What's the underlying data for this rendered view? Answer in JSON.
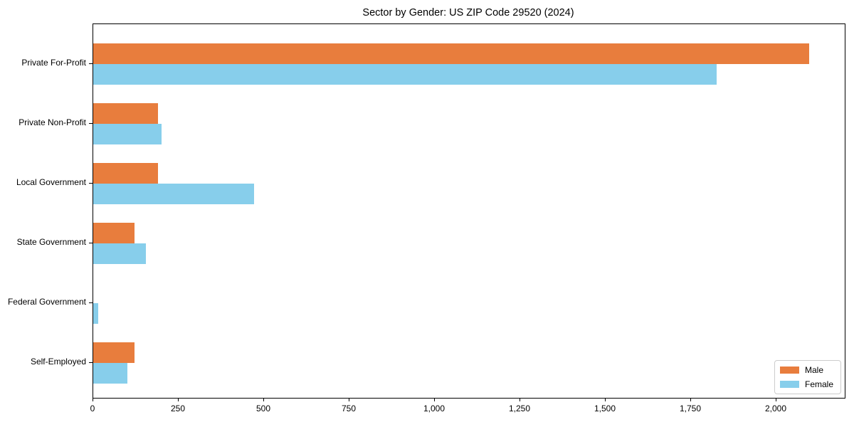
{
  "title": "Sector by Gender: US ZIP Code 29520 (2024)",
  "chart_data": {
    "type": "bar",
    "orientation": "horizontal",
    "title": "Sector by Gender: US ZIP Code 29520 (2024)",
    "xlabel": "",
    "ylabel": "",
    "categories": [
      "Private For-Profit",
      "Private Non-Profit",
      "Local Government",
      "State Government",
      "Federal Government",
      "Self-Employed"
    ],
    "series": [
      {
        "name": "Male",
        "color": "#e87d3d",
        "values": [
          2095,
          190,
          190,
          120,
          0,
          120
        ]
      },
      {
        "name": "Female",
        "color": "#87ceeb",
        "values": [
          1825,
          200,
          470,
          155,
          15,
          100
        ]
      }
    ],
    "xlim": [
      0,
      2200
    ],
    "x_tick_values": [
      0,
      250,
      500,
      750,
      1000,
      1250,
      1500,
      1750,
      2000
    ],
    "x_tick_labels": [
      "0",
      "250",
      "500",
      "750",
      "1,000",
      "1,250",
      "1,500",
      "1,750",
      "2,000"
    ],
    "grid": false,
    "legend_position": "lower right",
    "plot_background": "#ffffff",
    "frame_color": "#000000"
  },
  "legend": {
    "items": [
      {
        "label": "Male",
        "color": "#e87d3d"
      },
      {
        "label": "Female",
        "color": "#87ceeb"
      }
    ]
  }
}
